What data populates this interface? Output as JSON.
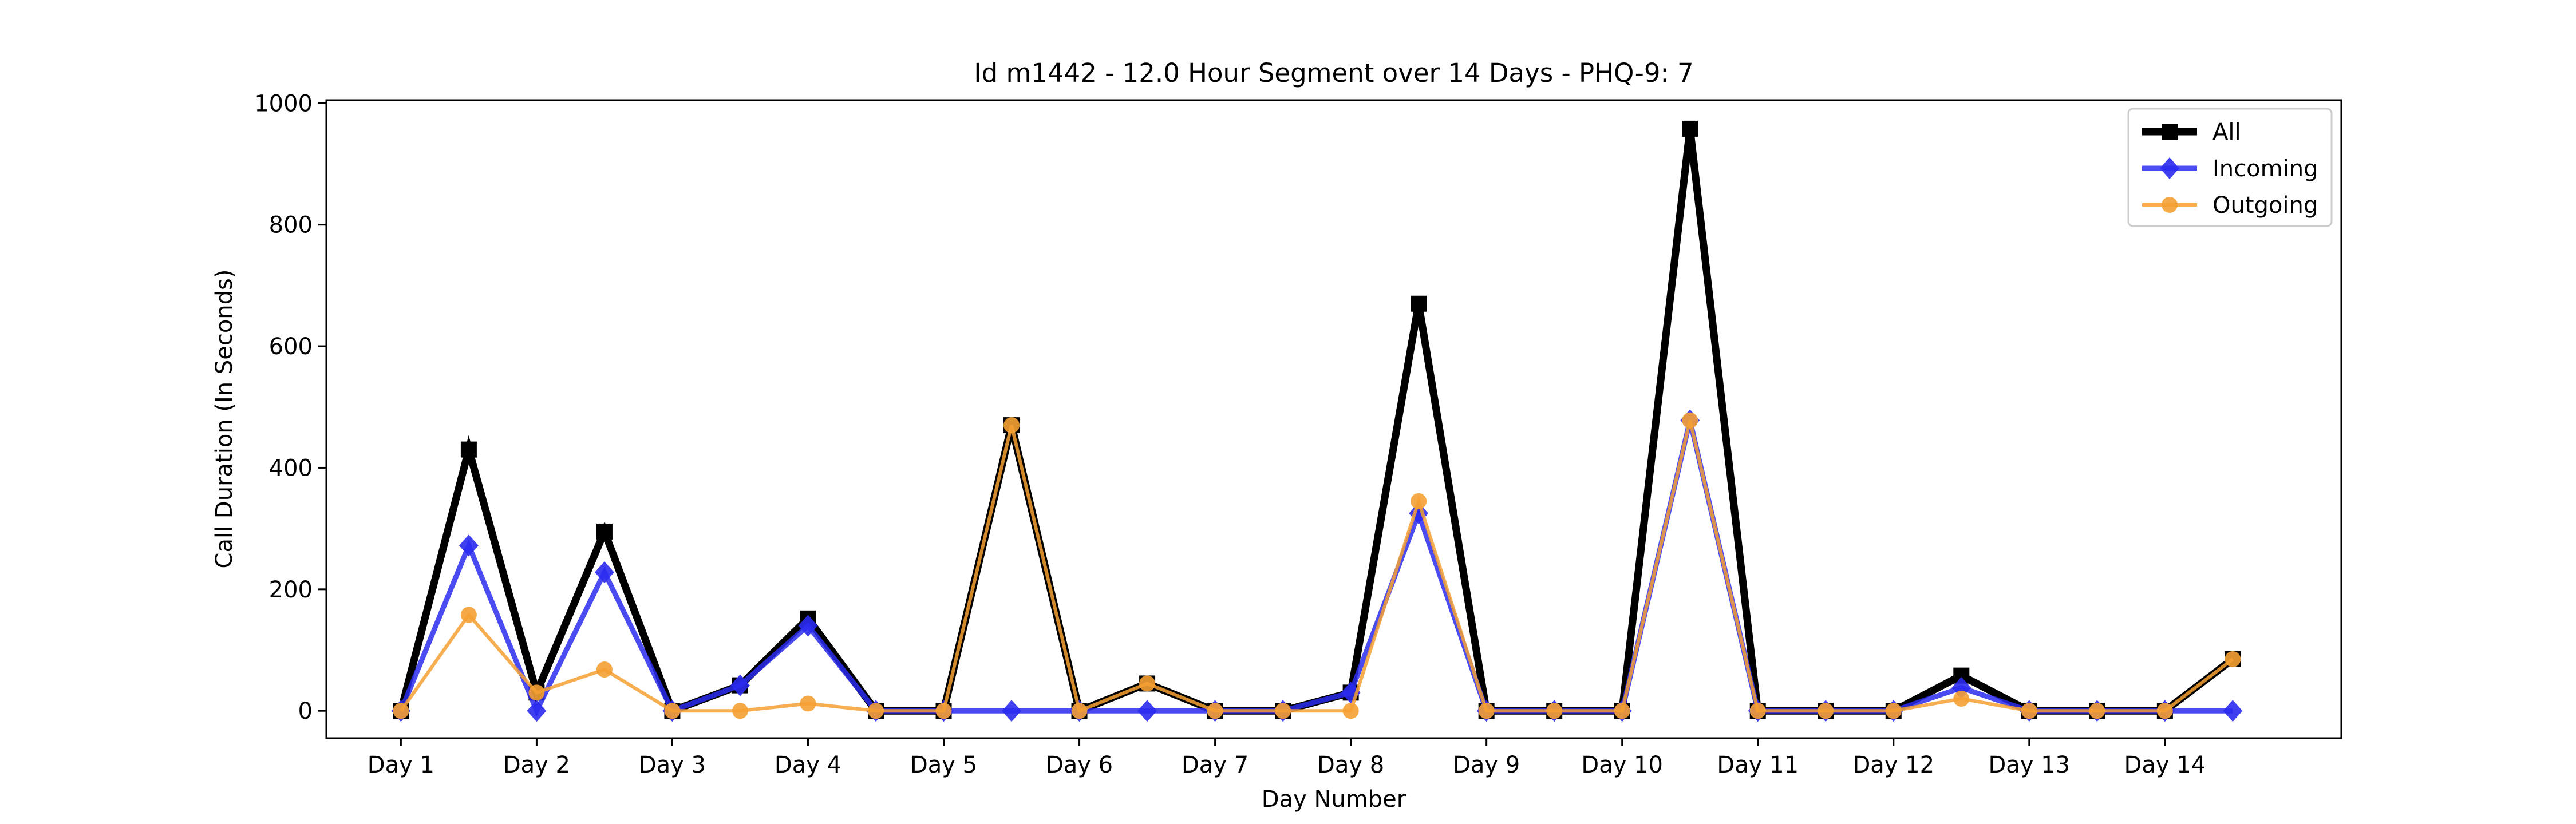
{
  "chart_data": {
    "type": "line",
    "title": "Id m1442 - 12.0 Hour Segment over 14 Days - PHQ-9: 7",
    "xlabel": "Day Number",
    "ylabel": "Call Duration (In Seconds)",
    "ylim": [
      -45,
      1005
    ],
    "xlim": [
      0.45,
      15.3
    ],
    "yticks": [
      0,
      200,
      400,
      600,
      800,
      1000
    ],
    "x_ticks": [
      {
        "x": 1,
        "label": "Day 1"
      },
      {
        "x": 2,
        "label": "Day 2"
      },
      {
        "x": 3,
        "label": "Day 3"
      },
      {
        "x": 4,
        "label": "Day 4"
      },
      {
        "x": 5,
        "label": "Day 5"
      },
      {
        "x": 6,
        "label": "Day 6"
      },
      {
        "x": 7,
        "label": "Day 7"
      },
      {
        "x": 8,
        "label": "Day 8"
      },
      {
        "x": 9,
        "label": "Day 9"
      },
      {
        "x": 10,
        "label": "Day 10"
      },
      {
        "x": 11,
        "label": "Day 11"
      },
      {
        "x": 12,
        "label": "Day 12"
      },
      {
        "x": 13,
        "label": "Day 13"
      },
      {
        "x": 14,
        "label": "Day 14"
      }
    ],
    "x": [
      1,
      1.5,
      2,
      2.5,
      3,
      3.5,
      4,
      4.5,
      5,
      5.5,
      6,
      6.5,
      7,
      7.5,
      8,
      8.5,
      9,
      9.5,
      10,
      10.5,
      11,
      11.5,
      12,
      12.5,
      13,
      13.5,
      14,
      14.5
    ],
    "grid": false,
    "legend_position": "top-right",
    "series": [
      {
        "name": "All",
        "color": "#000000",
        "marker": "square",
        "values": [
          0,
          430,
          30,
          295,
          0,
          42,
          152,
          0,
          0,
          470,
          0,
          45,
          0,
          0,
          30,
          670,
          0,
          0,
          0,
          958,
          0,
          0,
          0,
          58,
          0,
          0,
          0,
          85
        ]
      },
      {
        "name": "Incoming",
        "color": "#2b2bf0",
        "marker": "diamond",
        "values": [
          0,
          272,
          0,
          228,
          0,
          42,
          140,
          0,
          0,
          0,
          0,
          0,
          0,
          0,
          30,
          325,
          0,
          0,
          0,
          478,
          0,
          0,
          0,
          38,
          0,
          0,
          0,
          0
        ]
      },
      {
        "name": "Outgoing",
        "color": "#f5a033",
        "marker": "circle",
        "values": [
          0,
          158,
          30,
          68,
          0,
          0,
          12,
          0,
          0,
          470,
          0,
          45,
          0,
          0,
          0,
          345,
          0,
          0,
          0,
          478,
          0,
          0,
          0,
          20,
          0,
          0,
          0,
          85
        ]
      }
    ]
  }
}
